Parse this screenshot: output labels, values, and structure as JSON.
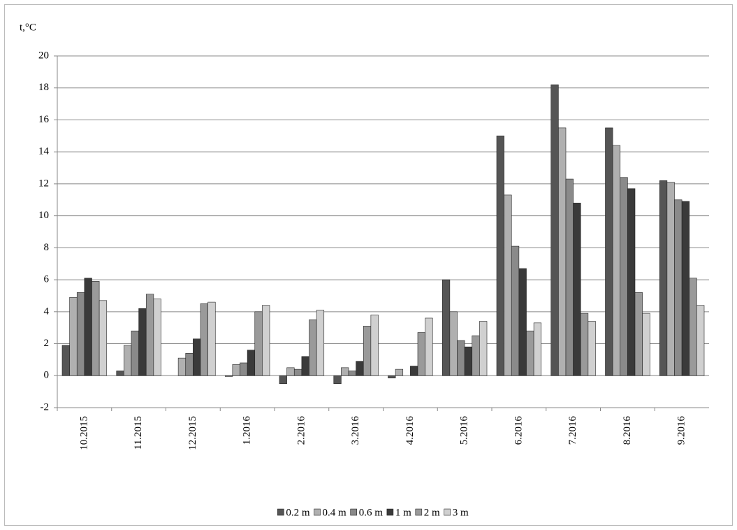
{
  "chart_data": {
    "type": "bar",
    "y_label": "t,°C",
    "categories": [
      "10.2015",
      "11.2015",
      "12.2015",
      "1.2016",
      "2.2016",
      "3.2016",
      "4.2016",
      "5.2016",
      "6.2016",
      "7.2016",
      "8.2016",
      "9.2016"
    ],
    "series": [
      {
        "name": "0.2 m",
        "color": "#555555",
        "values": [
          1.9,
          0.3,
          null,
          -0.05,
          -0.5,
          -0.5,
          -0.15,
          6.0,
          15.0,
          18.2,
          15.5,
          12.2
        ]
      },
      {
        "name": "0.4 m",
        "color": "#b0b0b0",
        "values": [
          4.9,
          1.9,
          1.1,
          0.7,
          0.5,
          0.5,
          0.4,
          4.0,
          11.3,
          15.5,
          14.4,
          12.1
        ]
      },
      {
        "name": "0.6 m",
        "color": "#8a8a8a",
        "values": [
          5.2,
          2.8,
          1.4,
          0.8,
          0.4,
          0.3,
          null,
          2.2,
          8.1,
          12.3,
          12.4,
          11.0
        ]
      },
      {
        "name": "1 m",
        "color": "#3a3a3a",
        "values": [
          6.1,
          4.2,
          2.3,
          1.6,
          1.2,
          0.9,
          0.6,
          1.8,
          6.7,
          10.8,
          11.7,
          10.9
        ]
      },
      {
        "name": "2 m",
        "color": "#9a9a9a",
        "values": [
          5.9,
          5.1,
          4.5,
          4.0,
          3.5,
          3.1,
          2.7,
          2.5,
          2.8,
          3.9,
          5.2,
          6.1
        ]
      },
      {
        "name": "3 m",
        "color": "#d0d0d0",
        "values": [
          4.7,
          4.8,
          4.6,
          4.4,
          4.1,
          3.8,
          3.6,
          3.4,
          3.3,
          3.4,
          3.9,
          4.4
        ]
      }
    ],
    "ylim": [
      -2,
      20
    ],
    "yticks": [
      -2,
      0,
      2,
      4,
      6,
      8,
      10,
      12,
      14,
      16,
      18,
      20
    ],
    "grid": true
  }
}
